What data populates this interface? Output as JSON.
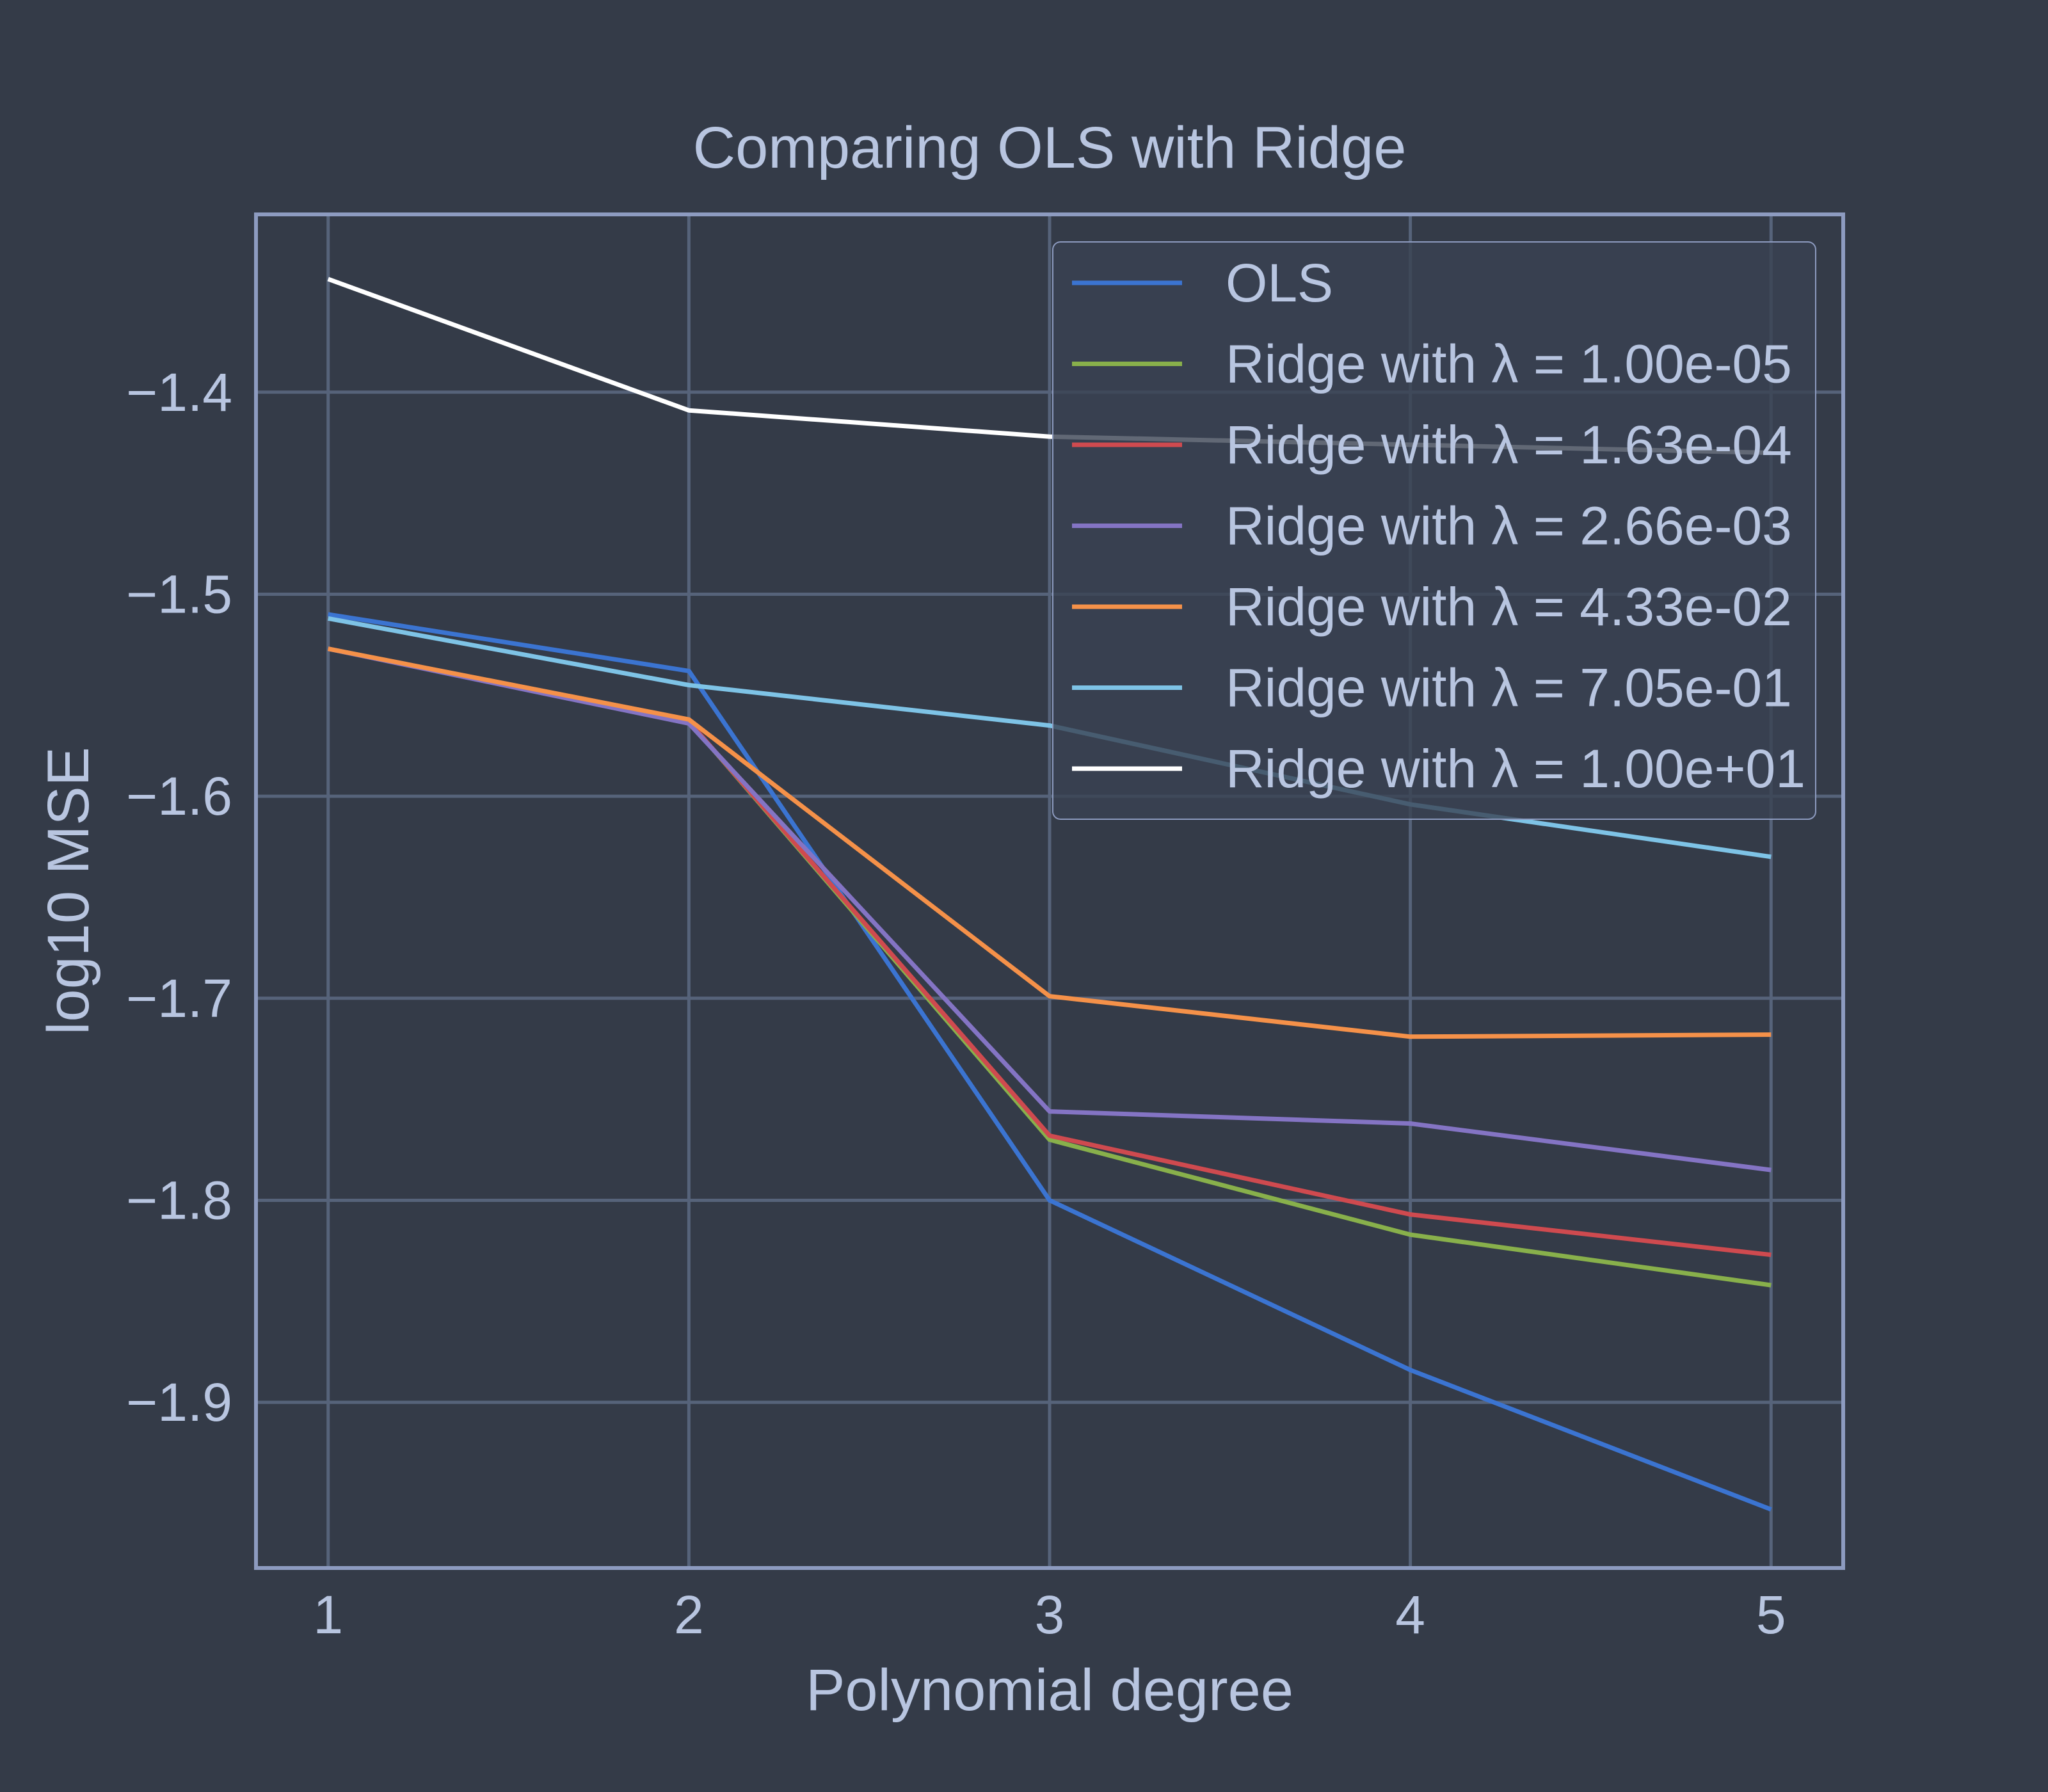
{
  "chart_data": {
    "type": "line",
    "title": "Comparing OLS with Ridge",
    "xlabel": "Polynomial degree",
    "ylabel": "log10 MSE",
    "x": [
      1,
      2,
      3,
      4,
      5
    ],
    "xlim": [
      0.8,
      5.2
    ],
    "ylim": [
      -1.982,
      -1.312
    ],
    "xticks": [
      1,
      2,
      3,
      4,
      5
    ],
    "yticks": [
      -1.4,
      -1.5,
      -1.6,
      -1.7,
      -1.8,
      -1.9
    ],
    "ytick_labels": [
      "−1.4",
      "−1.5",
      "−1.6",
      "−1.7",
      "−1.8",
      "−1.9"
    ],
    "grid": true,
    "legend_position": "top-right",
    "series": [
      {
        "name": "OLS",
        "color": "#3b74d1",
        "values": [
          -1.51,
          -1.538,
          -1.8,
          -1.884,
          -1.953
        ]
      },
      {
        "name": "Ridge with λ = 1.00e-05",
        "color": "#88b04b",
        "values": [
          -1.527,
          -1.563,
          -1.77,
          -1.817,
          -1.842
        ]
      },
      {
        "name": "Ridge with λ = 1.63e-04",
        "color": "#cf4a4f",
        "values": [
          -1.527,
          -1.563,
          -1.768,
          -1.807,
          -1.827
        ]
      },
      {
        "name": "Ridge with λ = 2.66e-03",
        "color": "#8474c4",
        "values": [
          -1.527,
          -1.564,
          -1.756,
          -1.762,
          -1.785
        ]
      },
      {
        "name": "Ridge with λ = 4.33e-02",
        "color": "#f59149",
        "values": [
          -1.527,
          -1.562,
          -1.699,
          -1.719,
          -1.718
        ]
      },
      {
        "name": "Ridge with λ = 7.05e-01",
        "color": "#7ec3e6",
        "values": [
          -1.512,
          -1.545,
          -1.565,
          -1.604,
          -1.63
        ]
      },
      {
        "name": "Ridge with λ = 1.00e+01",
        "color": "#ffffff",
        "values": [
          -1.344,
          -1.409,
          -1.422,
          -1.426,
          -1.43
        ]
      }
    ]
  },
  "colors": {
    "background": "#343b48",
    "text": "#b8c5e0",
    "grid": "#56637a",
    "axes": "#8d9bc0",
    "legend_face": "#394253",
    "legend_edge": "#8d9bc0"
  }
}
